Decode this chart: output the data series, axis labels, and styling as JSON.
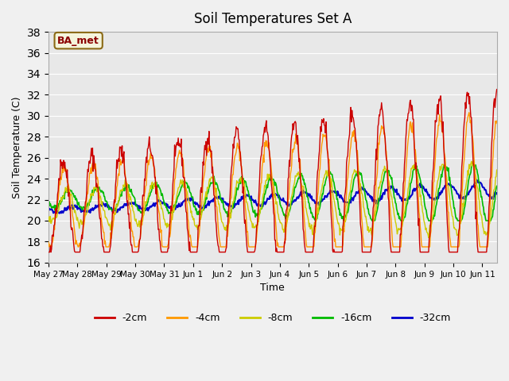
{
  "title": "Soil Temperatures Set A",
  "xlabel": "Time",
  "ylabel": "Soil Temperature (C)",
  "ylim": [
    16,
    38
  ],
  "yticks": [
    16,
    18,
    20,
    22,
    24,
    26,
    28,
    30,
    32,
    34,
    36,
    38
  ],
  "annotation": "BA_met",
  "colors": {
    "-2cm": "#cc0000",
    "-4cm": "#ff9900",
    "-8cm": "#cccc00",
    "-16cm": "#00bb00",
    "-32cm": "#0000cc"
  },
  "legend_labels": [
    "-2cm",
    "-4cm",
    "-8cm",
    "-16cm",
    "-32cm"
  ],
  "tick_labels": [
    "May 27",
    "May 28",
    "May 29",
    "May 30",
    "May 31",
    "Jun 1",
    "Jun 2",
    "Jun 3",
    "Jun 4",
    "Jun 5",
    "Jun 6",
    "Jun 7",
    "Jun 8",
    "Jun 9",
    "Jun 10",
    "Jun 11"
  ],
  "bg_color": "#e8e8e8",
  "n_points": 744
}
